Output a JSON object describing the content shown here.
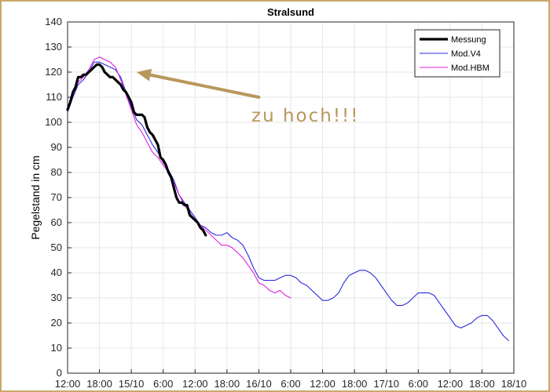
{
  "chart_data": {
    "type": "line",
    "title": "Stralsund",
    "ylabel": "Pegelstand in cm",
    "xlabel": "",
    "ylim": [
      0,
      140
    ],
    "yticks": [
      0,
      10,
      20,
      30,
      40,
      50,
      60,
      70,
      80,
      90,
      100,
      110,
      120,
      130,
      140
    ],
    "xlim": [
      0,
      84
    ],
    "xticks": [
      {
        "t": 0,
        "label": "12:00"
      },
      {
        "t": 6,
        "label": "18:00"
      },
      {
        "t": 12,
        "label": "15/10"
      },
      {
        "t": 18,
        "label": "6:00"
      },
      {
        "t": 24,
        "label": "12:00"
      },
      {
        "t": 30,
        "label": "18:00"
      },
      {
        "t": 36,
        "label": "16/10"
      },
      {
        "t": 42,
        "label": "6:00"
      },
      {
        "t": 48,
        "label": "12:00"
      },
      {
        "t": 54,
        "label": "18:00"
      },
      {
        "t": 60,
        "label": "17/10"
      },
      {
        "t": 66,
        "label": "6:00"
      },
      {
        "t": 72,
        "label": "12:00"
      },
      {
        "t": 78,
        "label": "18:00"
      },
      {
        "t": 84,
        "label": "18/10"
      }
    ],
    "grid": true,
    "legend_position": "top-right",
    "series": [
      {
        "name": "Messung",
        "color": "#000000",
        "points": [
          [
            0,
            105
          ],
          [
            0.5,
            108
          ],
          [
            1,
            112
          ],
          [
            1.5,
            114
          ],
          [
            2,
            118
          ],
          [
            2.5,
            118
          ],
          [
            3,
            119
          ],
          [
            3.5,
            119
          ],
          [
            4,
            120
          ],
          [
            4.5,
            121
          ],
          [
            5,
            122
          ],
          [
            5.5,
            123
          ],
          [
            6,
            123
          ],
          [
            6.5,
            122
          ],
          [
            7,
            120
          ],
          [
            7.5,
            119
          ],
          [
            8,
            118
          ],
          [
            8.5,
            118
          ],
          [
            9,
            117
          ],
          [
            9.5,
            116
          ],
          [
            10,
            115
          ],
          [
            10.5,
            113
          ],
          [
            11,
            112
          ],
          [
            11.5,
            110
          ],
          [
            12,
            108
          ],
          [
            12.5,
            104
          ],
          [
            13,
            103
          ],
          [
            13.5,
            103
          ],
          [
            14,
            103
          ],
          [
            14.5,
            102
          ],
          [
            15,
            98
          ],
          [
            15.5,
            96
          ],
          [
            16,
            95
          ],
          [
            16.5,
            93
          ],
          [
            17,
            91
          ],
          [
            17.5,
            86
          ],
          [
            18,
            85
          ],
          [
            18.5,
            83
          ],
          [
            19,
            80
          ],
          [
            19.5,
            78
          ],
          [
            20,
            74
          ],
          [
            20.5,
            70
          ],
          [
            21,
            68
          ],
          [
            21.5,
            68
          ],
          [
            22,
            67
          ],
          [
            22.5,
            67
          ],
          [
            23,
            63
          ],
          [
            23.5,
            62
          ],
          [
            24,
            61
          ],
          [
            24.5,
            60
          ],
          [
            25,
            58
          ],
          [
            25.5,
            57
          ],
          [
            26,
            55
          ]
        ]
      },
      {
        "name": "Mod.V4",
        "color": "#2a2ae0",
        "points": [
          [
            0,
            104
          ],
          [
            1,
            110
          ],
          [
            2,
            115
          ],
          [
            3,
            117
          ],
          [
            4,
            120
          ],
          [
            5,
            124
          ],
          [
            6,
            124
          ],
          [
            7,
            123
          ],
          [
            8,
            122
          ],
          [
            9,
            121
          ],
          [
            10,
            118
          ],
          [
            11,
            112
          ],
          [
            12,
            106
          ],
          [
            13,
            101
          ],
          [
            14,
            99
          ],
          [
            15,
            95
          ],
          [
            16,
            91
          ],
          [
            17,
            88
          ],
          [
            18,
            84
          ],
          [
            19,
            81
          ],
          [
            20,
            77
          ],
          [
            21,
            71
          ],
          [
            22,
            68
          ],
          [
            23,
            65
          ],
          [
            24,
            62
          ],
          [
            25,
            59
          ],
          [
            26,
            58
          ],
          [
            27,
            56
          ],
          [
            28,
            55
          ],
          [
            29,
            55
          ],
          [
            30,
            56
          ],
          [
            31,
            54
          ],
          [
            32,
            53
          ],
          [
            33,
            51
          ],
          [
            34,
            47
          ],
          [
            35,
            42
          ],
          [
            36,
            38
          ],
          [
            37,
            37
          ],
          [
            38,
            37
          ],
          [
            39,
            37
          ],
          [
            40,
            38
          ],
          [
            41,
            39
          ],
          [
            42,
            39
          ],
          [
            43,
            38
          ],
          [
            44,
            36
          ],
          [
            45,
            35
          ],
          [
            46,
            33
          ],
          [
            47,
            31
          ],
          [
            48,
            29
          ],
          [
            49,
            29
          ],
          [
            50,
            30
          ],
          [
            51,
            32
          ],
          [
            52,
            36
          ],
          [
            53,
            39
          ],
          [
            54,
            40
          ],
          [
            55,
            41
          ],
          [
            56,
            41
          ],
          [
            57,
            40
          ],
          [
            58,
            38
          ],
          [
            59,
            35
          ],
          [
            60,
            32
          ],
          [
            61,
            29
          ],
          [
            62,
            27
          ],
          [
            63,
            27
          ],
          [
            64,
            28
          ],
          [
            65,
            30
          ],
          [
            66,
            32
          ],
          [
            67,
            32
          ],
          [
            68,
            32
          ],
          [
            69,
            31
          ],
          [
            70,
            28
          ],
          [
            71,
            25
          ],
          [
            72,
            22
          ],
          [
            73,
            19
          ],
          [
            74,
            18
          ],
          [
            75,
            19
          ],
          [
            76,
            20
          ],
          [
            77,
            22
          ],
          [
            78,
            23
          ],
          [
            79,
            23
          ],
          [
            80,
            21
          ],
          [
            81,
            18
          ],
          [
            82,
            15
          ],
          [
            83,
            13
          ]
        ]
      },
      {
        "name": "Mod.HBM",
        "color": "#e020e0",
        "points": [
          [
            0,
            105
          ],
          [
            1,
            111
          ],
          [
            2,
            116
          ],
          [
            3,
            118
          ],
          [
            4,
            121
          ],
          [
            5,
            125
          ],
          [
            6,
            126
          ],
          [
            7,
            125
          ],
          [
            8,
            124
          ],
          [
            9,
            122
          ],
          [
            10,
            117
          ],
          [
            11,
            111
          ],
          [
            12,
            105
          ],
          [
            13,
            99
          ],
          [
            14,
            96
          ],
          [
            15,
            92
          ],
          [
            16,
            88
          ],
          [
            17,
            86
          ],
          [
            18,
            83
          ],
          [
            19,
            80
          ],
          [
            20,
            76
          ],
          [
            21,
            71
          ],
          [
            22,
            67
          ],
          [
            23,
            64
          ],
          [
            24,
            61
          ],
          [
            25,
            59
          ],
          [
            26,
            57
          ],
          [
            27,
            55
          ],
          [
            28,
            53
          ],
          [
            29,
            51
          ],
          [
            30,
            51
          ],
          [
            31,
            50
          ],
          [
            32,
            48
          ],
          [
            33,
            46
          ],
          [
            34,
            43
          ],
          [
            35,
            40
          ],
          [
            36,
            36
          ],
          [
            37,
            35
          ],
          [
            38,
            33
          ],
          [
            39,
            32
          ],
          [
            40,
            33
          ],
          [
            41,
            31
          ],
          [
            42,
            30
          ]
        ]
      }
    ],
    "annotation": {
      "text": "zu hoch!!!",
      "color": "#b8975a",
      "arrow_from": [
        36,
        110
      ],
      "arrow_to": [
        13,
        120
      ]
    }
  }
}
